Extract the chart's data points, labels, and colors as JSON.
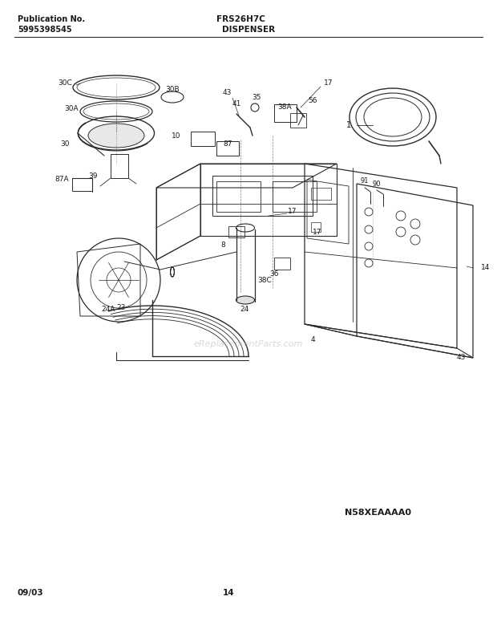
{
  "title": "FRS26H7C",
  "subtitle": "DISPENSER",
  "pub_no_label": "Publication No.",
  "pub_no": "5995398545",
  "diagram_code": "N58XEAAAA0",
  "date": "09/03",
  "page": "14",
  "bg_color": "#ffffff",
  "line_color": "#2a2a2a",
  "text_color": "#1a1a1a",
  "watermark": "eReplacementParts.com",
  "fig_width": 6.2,
  "fig_height": 7.94,
  "dpi": 100
}
